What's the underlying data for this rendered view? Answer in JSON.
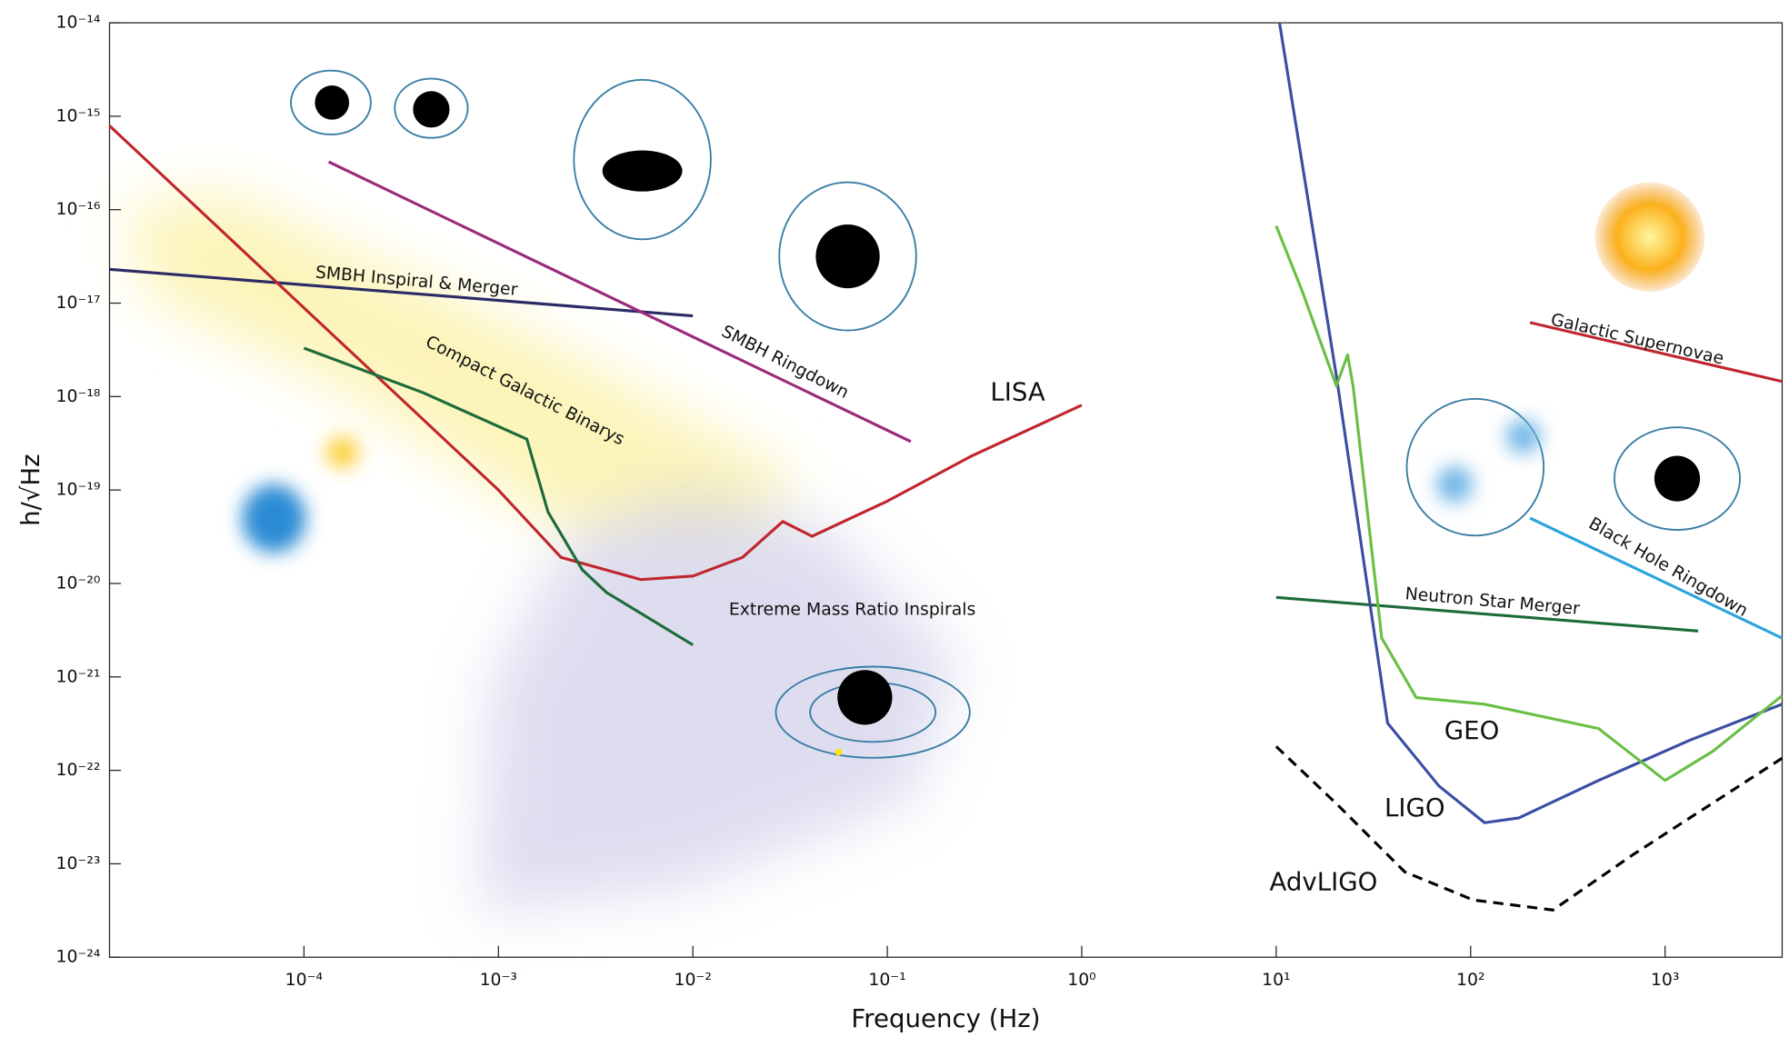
{
  "chart_data": {
    "type": "line",
    "xlabel": "Frequency (Hz)",
    "ylabel": "h/√Hz",
    "log_x": true,
    "log_y": true,
    "xlim": [
      1e-05,
      4000
    ],
    "ylim": [
      1e-24,
      1e-14
    ],
    "xticks": [
      {
        "value": 0.0001,
        "label": "10⁻⁴"
      },
      {
        "value": 0.001,
        "label": "10⁻³"
      },
      {
        "value": 0.01,
        "label": "10⁻²"
      },
      {
        "value": 0.1,
        "label": "10⁻¹"
      },
      {
        "value": 1,
        "label": "10⁰"
      },
      {
        "value": 10,
        "label": "10¹"
      },
      {
        "value": 100,
        "label": "10²"
      },
      {
        "value": 1000,
        "label": "10³"
      }
    ],
    "yticks": [
      {
        "value": 1e-24,
        "label": "10⁻²⁴"
      },
      {
        "value": 1e-23,
        "label": "10⁻²³"
      },
      {
        "value": 1e-22,
        "label": "10⁻²²"
      },
      {
        "value": 1e-21,
        "label": "10⁻²¹"
      },
      {
        "value": 1e-20,
        "label": "10⁻²⁰"
      },
      {
        "value": 1e-19,
        "label": "10⁻¹⁹"
      },
      {
        "value": 1e-18,
        "label": "10⁻¹⁸"
      },
      {
        "value": 1e-17,
        "label": "10⁻¹⁷"
      },
      {
        "value": 1e-16,
        "label": "10⁻¹⁶"
      },
      {
        "value": 1e-15,
        "label": "10⁻¹⁵"
      },
      {
        "value": 1e-14,
        "label": "10⁻¹⁴"
      }
    ],
    "annotations": [
      "Extreme Mass Ratio Inspirals"
    ],
    "series": [
      {
        "name": "SMBH Inspiral & Merger",
        "color": "#2b2a66",
        "x": [
          1e-05,
          0.01
        ],
        "values": [
          2.3e-17,
          7.3e-18
        ]
      },
      {
        "name": "SMBH Ringdown",
        "color": "#9b2a7c",
        "x": [
          0.000134,
          0.132
        ],
        "values": [
          3.25e-16,
          3.3e-19
        ]
      },
      {
        "name": "LISA",
        "color": "#c0262d",
        "x": [
          1e-05,
          0.0001,
          0.001,
          0.0021,
          0.0054,
          0.01,
          0.018,
          0.029,
          0.041,
          0.065,
          0.1,
          0.27,
          1
        ],
        "values": [
          7.9e-16,
          8.9e-18,
          1e-19,
          1.9e-20,
          1.1e-20,
          1.2e-20,
          1.9e-20,
          4.6e-20,
          3.2e-20,
          5e-20,
          7.6e-20,
          2.3e-19,
          8.1e-19
        ]
      },
      {
        "name": "Compact Galactic Binarys",
        "color": "#1e6b3a",
        "x": [
          0.0001,
          0.00041,
          0.0014,
          0.0018,
          0.0027,
          0.0036,
          0.01
        ],
        "values": [
          3.3e-18,
          1.1e-18,
          3.5e-19,
          5.8e-20,
          1.4e-20,
          8e-21,
          2.2e-21
        ]
      },
      {
        "name": "Galactic Supernovae",
        "color": "#c0262d",
        "x": [
          202,
          4000
        ],
        "values": [
          6.2e-18,
          1.45e-18
        ]
      },
      {
        "name": "Neutron Star Merger",
        "color": "#1e6b3a",
        "x": [
          10,
          1480
        ],
        "values": [
          7.1e-21,
          3.1e-21
        ]
      },
      {
        "name": "Black Hole Ringdown",
        "color": "#2aa4dc",
        "x": [
          202,
          4000
        ],
        "values": [
          5e-20,
          2.6e-21
        ]
      },
      {
        "name": "LIGO",
        "color": "#3b4ea3",
        "x": [
          10.4,
          20.4,
          37.4,
          68.7,
          118,
          177,
          455,
          1340,
          4000
        ],
        "values": [
          1e-14,
          1.66e-18,
          3.2e-22,
          6.8e-23,
          2.75e-23,
          3.1e-23,
          7.8e-23,
          2.1e-22,
          5.1e-22
        ]
      },
      {
        "name": "GEO",
        "color": "#6abf45",
        "x": [
          10,
          13.6,
          20.4,
          23.3,
          24.9,
          34.9,
          52.5,
          118,
          455,
          1000,
          1760,
          4000
        ],
        "values": [
          6.7e-17,
          1.35e-17,
          1.3e-18,
          2.8e-18,
          1.26e-18,
          2.6e-21,
          6e-22,
          5.1e-22,
          2.8e-22,
          7.8e-23,
          1.6e-22,
          6.3e-22
        ]
      },
      {
        "name": "AdvLIGO",
        "color": "#000000",
        "dashed": true,
        "x": [
          10,
          20.4,
          45.8,
          103,
          265,
          683,
          4000
        ],
        "values": [
          1.8e-22,
          4.4e-23,
          8.2e-24,
          4.1e-24,
          3.2e-24,
          1.25e-23,
          1.35e-22
        ]
      }
    ]
  }
}
